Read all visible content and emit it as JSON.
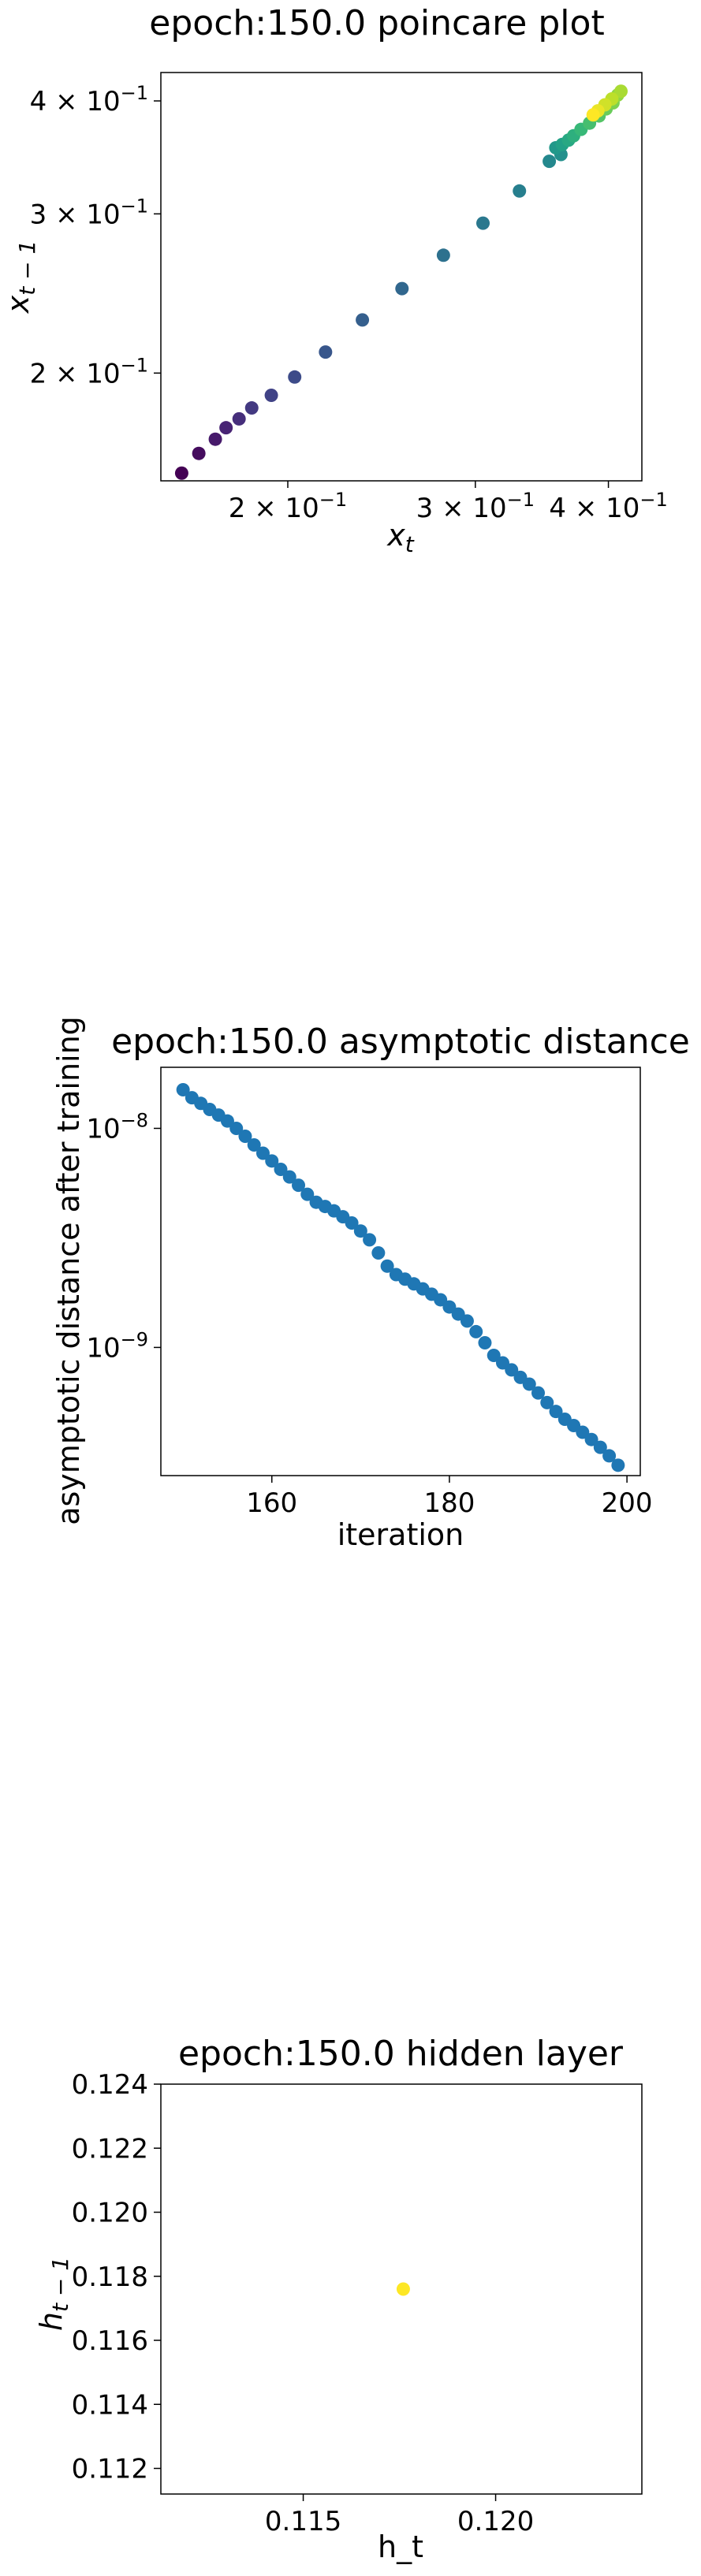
{
  "charts": [
    {
      "title": "epoch:150.0 poincare plot",
      "xlabel": "x_t",
      "ylabel": "x_{t-1}"
    },
    {
      "title": "epoch:150.0 asymptotic distance",
      "xlabel": "iteration",
      "ylabel": "asymptotic distance after training"
    },
    {
      "title": "epoch:150.0 hidden layer",
      "xlabel": "h_t",
      "ylabel": "h_{t-1}"
    }
  ],
  "chart_data": [
    {
      "type": "scatter",
      "title": "epoch:150.0 poincare plot",
      "xlabel": "x_t",
      "ylabel": "x_{t-1}",
      "xscale": "log",
      "yscale": "log",
      "xlim": [
        0.152,
        0.43
      ],
      "ylim": [
        0.152,
        0.43
      ],
      "grid": false,
      "colormap": "viridis",
      "x_ticks": [
        {
          "value": 0.2,
          "mantissa": "2",
          "exponent": "−1"
        },
        {
          "value": 0.3,
          "mantissa": "3",
          "exponent": "−1"
        },
        {
          "value": 0.4,
          "mantissa": "4",
          "exponent": "−1"
        }
      ],
      "y_ticks": [
        {
          "value": 0.2,
          "mantissa": "2",
          "exponent": "−1"
        },
        {
          "value": 0.3,
          "mantissa": "3",
          "exponent": "−1"
        },
        {
          "value": 0.4,
          "mantissa": "4",
          "exponent": "−1"
        }
      ],
      "x": [
        0.159,
        0.165,
        0.171,
        0.175,
        0.18,
        0.185,
        0.193,
        0.203,
        0.217,
        0.235,
        0.256,
        0.28,
        0.305,
        0.33,
        0.352,
        0.361,
        0.357,
        0.362,
        0.367,
        0.371,
        0.377,
        0.384,
        0.392,
        0.398,
        0.404,
        0.408,
        0.411,
        0.403,
        0.397,
        0.391,
        0.387
      ],
      "y": [
        0.155,
        0.163,
        0.169,
        0.174,
        0.178,
        0.183,
        0.189,
        0.198,
        0.211,
        0.229,
        0.248,
        0.27,
        0.293,
        0.318,
        0.343,
        0.349,
        0.355,
        0.358,
        0.362,
        0.366,
        0.372,
        0.378,
        0.385,
        0.392,
        0.398,
        0.406,
        0.41,
        0.402,
        0.396,
        0.39,
        0.386
      ],
      "color_values": [
        0.0,
        0.03,
        0.07,
        0.1,
        0.13,
        0.17,
        0.2,
        0.23,
        0.27,
        0.3,
        0.33,
        0.37,
        0.4,
        0.43,
        0.47,
        0.5,
        0.53,
        0.57,
        0.6,
        0.63,
        0.67,
        0.7,
        0.73,
        0.77,
        0.8,
        0.83,
        0.87,
        0.9,
        0.93,
        0.97,
        1.0
      ]
    },
    {
      "type": "scatter",
      "title": "epoch:150.0 asymptotic distance",
      "xlabel": "iteration",
      "ylabel": "asymptotic distance after training",
      "xscale": "linear",
      "yscale": "log",
      "xlim": [
        147.5,
        201.5
      ],
      "ylim": [
        2.6e-10,
        1.9e-08
      ],
      "grid": false,
      "color": "#1f77b4",
      "x_ticks": [
        {
          "value": 160,
          "label": "160"
        },
        {
          "value": 180,
          "label": "180"
        },
        {
          "value": 200,
          "label": "200"
        }
      ],
      "y_ticks": [
        {
          "value": 1e-08,
          "mantissa": "10",
          "exponent": "−8"
        },
        {
          "value": 1e-09,
          "mantissa": "10",
          "exponent": "−9"
        }
      ],
      "x": [
        150,
        151,
        152,
        153,
        154,
        155,
        156,
        157,
        158,
        159,
        160,
        161,
        162,
        163,
        164,
        165,
        166,
        167,
        168,
        169,
        170,
        171,
        172,
        173,
        174,
        175,
        176,
        177,
        178,
        179,
        180,
        181,
        182,
        183,
        184,
        185,
        186,
        187,
        188,
        189,
        190,
        191,
        192,
        193,
        194,
        195,
        196,
        197,
        198,
        199
      ],
      "y": [
        1.5e-08,
        1.38e-08,
        1.3e-08,
        1.22e-08,
        1.15e-08,
        1.08e-08,
        1e-08,
        9.2e-09,
        8.4e-09,
        7.7e-09,
        7.1e-09,
        6.5e-09,
        6e-09,
        5.5e-09,
        5e-09,
        4.6e-09,
        4.4e-09,
        4.2e-09,
        3.95e-09,
        3.7e-09,
        3.4e-09,
        3.1e-09,
        2.7e-09,
        2.35e-09,
        2.15e-09,
        2.05e-09,
        1.95e-09,
        1.85e-09,
        1.75e-09,
        1.65e-09,
        1.53e-09,
        1.42e-09,
        1.32e-09,
        1.18e-09,
        1.05e-09,
        9.2e-10,
        8.5e-10,
        7.9e-10,
        7.3e-10,
        6.8e-10,
        6.2e-10,
        5.6e-10,
        5.1e-10,
        4.7e-10,
        4.4e-10,
        4.1e-10,
        3.8e-10,
        3.5e-10,
        3.2e-10,
        2.9e-10
      ]
    },
    {
      "type": "scatter",
      "title": "epoch:150.0 hidden layer",
      "xlabel": "h_t",
      "ylabel": "h_{t-1}",
      "xscale": "linear",
      "yscale": "linear",
      "xlim": [
        0.1113,
        0.1238
      ],
      "ylim": [
        0.1112,
        0.124
      ],
      "grid": false,
      "color": "#fde725",
      "x_ticks": [
        {
          "value": 0.115,
          "label": "0.115"
        },
        {
          "value": 0.12,
          "label": "0.120"
        }
      ],
      "y_ticks": [
        {
          "value": 0.112,
          "label": "0.112"
        },
        {
          "value": 0.114,
          "label": "0.114"
        },
        {
          "value": 0.116,
          "label": "0.116"
        },
        {
          "value": 0.118,
          "label": "0.118"
        },
        {
          "value": 0.12,
          "label": "0.120"
        },
        {
          "value": 0.122,
          "label": "0.122"
        },
        {
          "value": 0.124,
          "label": "0.124"
        }
      ],
      "x": [
        0.1176
      ],
      "y": [
        0.1176
      ]
    }
  ]
}
